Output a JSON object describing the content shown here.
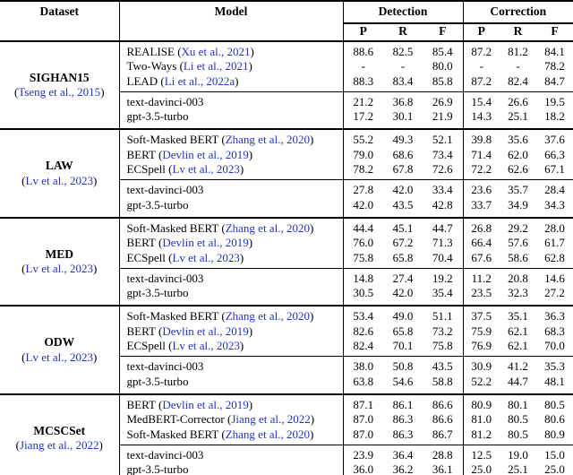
{
  "colors": {
    "citation": "#2233BF",
    "text": "#000000"
  },
  "header": {
    "dataset": "Dataset",
    "model": "Model",
    "detection": "Detection",
    "correction": "Correction",
    "metrics": [
      "P",
      "R",
      "F"
    ]
  },
  "blocks": [
    {
      "dataset": "SIGHAN15",
      "cite": "Tseng et al., 2015",
      "baselines": [
        {
          "name": "REALISE",
          "cite": "Xu et al., 2021",
          "det": [
            "88.6",
            "82.5",
            "85.4"
          ],
          "cor": [
            "87.2",
            "81.2",
            "84.1"
          ]
        },
        {
          "name": "Two-Ways",
          "cite": "Li et al., 2021",
          "det": [
            "-",
            "-",
            "80.0"
          ],
          "cor": [
            "-",
            "-",
            "78.2"
          ]
        },
        {
          "name": "LEAD",
          "cite": "Li et al., 2022a",
          "det": [
            "88.3",
            "83.4",
            "85.8"
          ],
          "cor": [
            "87.2",
            "82.4",
            "84.7"
          ]
        }
      ],
      "llms": [
        {
          "name": "text-davinci-003",
          "cite": "",
          "det": [
            "21.2",
            "36.8",
            "26.9"
          ],
          "cor": [
            "15.4",
            "26.6",
            "19.5"
          ]
        },
        {
          "name": "gpt-3.5-turbo",
          "cite": "",
          "det": [
            "17.2",
            "30.1",
            "21.9"
          ],
          "cor": [
            "14.3",
            "25.1",
            "18.2"
          ]
        }
      ]
    },
    {
      "dataset": "LAW",
      "cite": "Lv et al., 2023",
      "baselines": [
        {
          "name": "Soft-Masked BERT",
          "cite": "Zhang et al., 2020",
          "det": [
            "55.2",
            "49.3",
            "52.1"
          ],
          "cor": [
            "39.8",
            "35.6",
            "37.6"
          ]
        },
        {
          "name": "BERT",
          "cite": "Devlin et al., 2019",
          "det": [
            "79.0",
            "68.6",
            "73.4"
          ],
          "cor": [
            "71.4",
            "62.0",
            "66.3"
          ]
        },
        {
          "name": "ECSpell",
          "cite": "Lv et al., 2023",
          "det": [
            "78.2",
            "67.8",
            "72.6"
          ],
          "cor": [
            "72.2",
            "62.6",
            "67.1"
          ]
        }
      ],
      "llms": [
        {
          "name": "text-davinci-003",
          "cite": "",
          "det": [
            "27.8",
            "42.0",
            "33.4"
          ],
          "cor": [
            "23.6",
            "35.7",
            "28.4"
          ]
        },
        {
          "name": "gpt-3.5-turbo",
          "cite": "",
          "det": [
            "42.0",
            "43.5",
            "42.8"
          ],
          "cor": [
            "33.7",
            "34.9",
            "34.3"
          ]
        }
      ]
    },
    {
      "dataset": "MED",
      "cite": "Lv et al., 2023",
      "baselines": [
        {
          "name": "Soft-Masked BERT",
          "cite": "Zhang et al., 2020",
          "det": [
            "44.4",
            "45.1",
            "44.7"
          ],
          "cor": [
            "26.8",
            "29.2",
            "28.0"
          ]
        },
        {
          "name": "BERT",
          "cite": "Devlin et al., 2019",
          "det": [
            "76.0",
            "67.2",
            "71.3"
          ],
          "cor": [
            "66.4",
            "57.6",
            "61.7"
          ]
        },
        {
          "name": "ECSpell",
          "cite": "Lv et al., 2023",
          "det": [
            "75.8",
            "65.8",
            "70.4"
          ],
          "cor": [
            "67.6",
            "58.6",
            "62.8"
          ]
        }
      ],
      "llms": [
        {
          "name": "text-davinci-003",
          "cite": "",
          "det": [
            "14.8",
            "27.4",
            "19.2"
          ],
          "cor": [
            "11.2",
            "20.8",
            "14.6"
          ]
        },
        {
          "name": "gpt-3.5-turbo",
          "cite": "",
          "det": [
            "30.5",
            "42.0",
            "35.4"
          ],
          "cor": [
            "23.5",
            "32.3",
            "27.2"
          ]
        }
      ]
    },
    {
      "dataset": "ODW",
      "cite": "Lv et al., 2023",
      "baselines": [
        {
          "name": "Soft-Masked BERT",
          "cite": "Zhang et al., 2020",
          "det": [
            "53.4",
            "49.0",
            "51.1"
          ],
          "cor": [
            "37.5",
            "35.1",
            "36.3"
          ]
        },
        {
          "name": "BERT",
          "cite": "Devlin et al., 2019",
          "det": [
            "82.6",
            "65.8",
            "73.2"
          ],
          "cor": [
            "75.9",
            "62.1",
            "68.3"
          ]
        },
        {
          "name": "ECSpell",
          "cite": "Lv et al., 2023",
          "det": [
            "82.4",
            "70.1",
            "75.8"
          ],
          "cor": [
            "76.9",
            "62.1",
            "70.0"
          ]
        }
      ],
      "llms": [
        {
          "name": "text-davinci-003",
          "cite": "",
          "det": [
            "38.0",
            "50.8",
            "43.5"
          ],
          "cor": [
            "30.9",
            "41.2",
            "35.3"
          ]
        },
        {
          "name": "gpt-3.5-turbo",
          "cite": "",
          "det": [
            "63.8",
            "54.6",
            "58.8"
          ],
          "cor": [
            "52.2",
            "44.7",
            "48.1"
          ]
        }
      ]
    },
    {
      "dataset": "MCSCSet",
      "cite": "Jiang et al., 2022",
      "baselines": [
        {
          "name": "BERT",
          "cite": "Devlin et al., 2019",
          "det": [
            "87.1",
            "86.1",
            "86.6"
          ],
          "cor": [
            "80.9",
            "80.1",
            "80.5"
          ]
        },
        {
          "name": "MedBERT-Corrector",
          "cite": "Jiang et al., 2022",
          "det": [
            "87.0",
            "86.3",
            "86.6"
          ],
          "cor": [
            "81.0",
            "80.5",
            "80.6"
          ]
        },
        {
          "name": "Soft-Masked BERT",
          "cite": "Zhang et al., 2020",
          "det": [
            "87.0",
            "86.3",
            "86.7"
          ],
          "cor": [
            "81.2",
            "80.5",
            "80.9"
          ]
        }
      ],
      "llms": [
        {
          "name": "text-davinci-003",
          "cite": "",
          "det": [
            "23.9",
            "36.4",
            "28.8"
          ],
          "cor": [
            "12.5",
            "19.0",
            "15.0"
          ]
        },
        {
          "name": "gpt-3.5-turbo",
          "cite": "",
          "det": [
            "36.0",
            "36.2",
            "36.1"
          ],
          "cor": [
            "25.0",
            "25.1",
            "25.0"
          ]
        }
      ]
    }
  ]
}
